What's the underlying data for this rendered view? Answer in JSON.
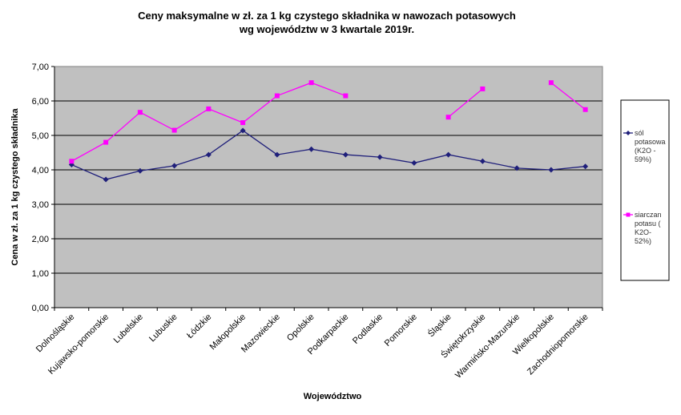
{
  "chart_data": {
    "type": "line",
    "title_lines": [
      "Ceny maksymalne  w zł. za 1 kg czystego składnika w nawozach potasowych",
      "wg województw w 3 kwartale 2019r."
    ],
    "xlabel": "Województwo",
    "ylabel": "Cena w zł. za 1 kg czystego składnika",
    "ylim": [
      0,
      7
    ],
    "yticks": [
      "0,00",
      "1,00",
      "2,00",
      "3,00",
      "4,00",
      "5,00",
      "6,00",
      "7,00"
    ],
    "grid": true,
    "legend_position": "right",
    "plot_background": "#c0c0c0",
    "categories": [
      "Dolnośląskie",
      "Kujawsko-pomorskie",
      "Lubelskie",
      "Lubuskie",
      "Łódzkie",
      "Małopolskie",
      "Mazowieckie",
      "Opolskie",
      "Podkarpackie",
      "Podlaskie",
      "Pomorskie",
      "Śląskie",
      "Świętokrzyskie",
      "Warmińsko-Mazurskie",
      "Wielkopolskie",
      "Zachodniopomorskie"
    ],
    "series": [
      {
        "name_lines": [
          "sól",
          "potasowa",
          "(K2O -",
          "59%)"
        ],
        "color": "#1f1f7a",
        "marker": "diamond",
        "values": [
          4.15,
          3.72,
          3.97,
          4.12,
          4.44,
          5.14,
          4.44,
          4.6,
          4.44,
          4.37,
          4.2,
          4.44,
          4.25,
          4.05,
          4.0,
          4.1
        ]
      },
      {
        "name_lines": [
          "siarczan",
          "potasu (",
          "K2O-",
          "52%)"
        ],
        "color": "#ff00ff",
        "marker": "square",
        "values": [
          4.25,
          4.8,
          5.67,
          5.15,
          5.77,
          5.37,
          6.15,
          6.53,
          6.15,
          null,
          null,
          5.53,
          6.35,
          null,
          6.53,
          5.75
        ]
      }
    ]
  }
}
